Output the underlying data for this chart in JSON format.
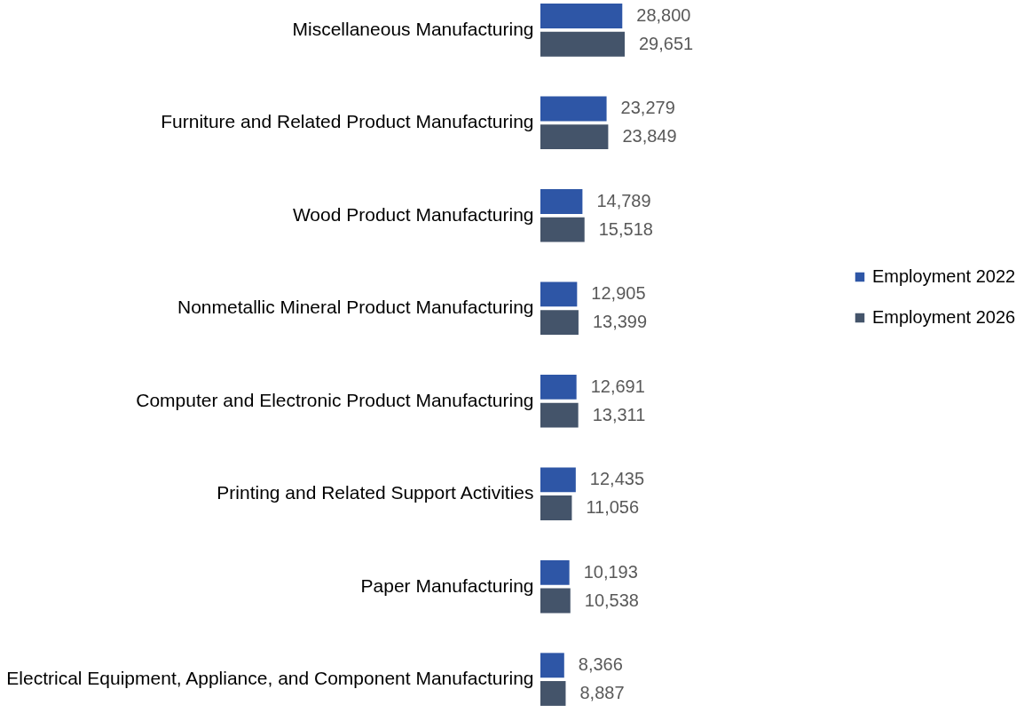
{
  "chart_data": {
    "type": "bar",
    "orientation": "horizontal",
    "categories": [
      "Miscellaneous Manufacturing",
      "Furniture and Related  Product Manufacturing",
      "Wood Product Manufacturing",
      "Nonmetallic  Mineral Product Manufacturing",
      "Computer and Electronic Product Manufacturing",
      "Printing and Related  Support Activities",
      "Paper Manufacturing",
      "Electrical Equipment, Appliance, and Component Manufacturing"
    ],
    "series": [
      {
        "name": "Employment 2022",
        "color": "#2e56a6",
        "values": [
          28800,
          23279,
          14789,
          12905,
          12691,
          12435,
          10193,
          8366
        ],
        "value_labels": [
          "28,800",
          "23,279",
          "14,789",
          "12,905",
          "12,691",
          "12,435",
          "10,193",
          "8,366"
        ]
      },
      {
        "name": "Employment 2026",
        "color": "#44546a",
        "values": [
          29651,
          23849,
          15518,
          13399,
          13311,
          11056,
          10538,
          8887
        ],
        "value_labels": [
          "29,651",
          "23,849",
          "15,518",
          "13,399",
          "13,311",
          "11,056",
          "10,538",
          "8,887"
        ]
      }
    ],
    "legend": "right",
    "grid": false
  }
}
